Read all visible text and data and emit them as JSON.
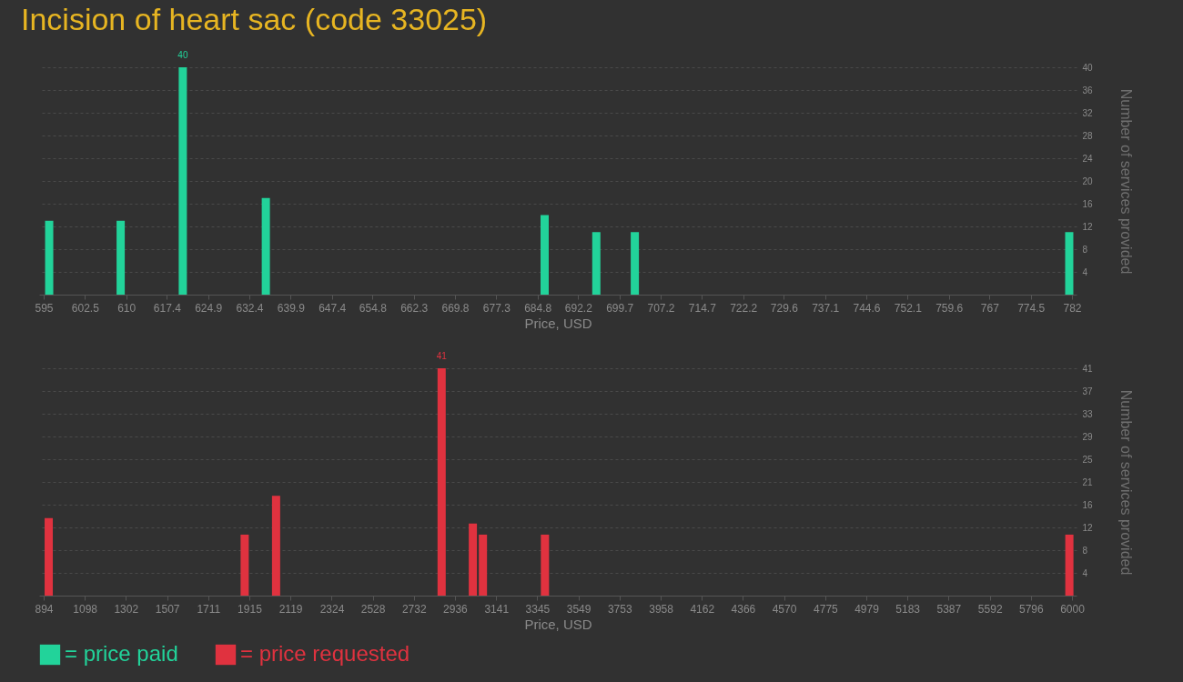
{
  "chart_data": [
    {
      "type": "bar",
      "title": "Incision of heart sac (code 33025)",
      "xlabel": "Price, USD",
      "ylabel": "Number of services provided",
      "series": [
        {
          "name": "= price paid",
          "color": "#22d39a",
          "x": [
            596,
            609,
            620.3,
            635.4,
            686.1,
            695.5,
            702.5,
            781.5
          ],
          "values": [
            13,
            13,
            40,
            17,
            14,
            11,
            11,
            11
          ],
          "value_labels": [
            null,
            null,
            "40",
            null,
            null,
            null,
            null,
            null
          ]
        }
      ],
      "xlim": [
        595,
        782
      ],
      "xticks": [
        595,
        602.5,
        610,
        617.4,
        624.9,
        632.4,
        639.9,
        647.4,
        654.8,
        662.3,
        669.8,
        677.3,
        684.8,
        692.2,
        699.7,
        707.2,
        714.7,
        722.2,
        729.6,
        737.1,
        744.6,
        752.1,
        759.6,
        767,
        774.5,
        782
      ],
      "ylim": [
        0,
        40
      ],
      "yticks": [
        4,
        8,
        12,
        16,
        20,
        24,
        28,
        32,
        36,
        40
      ],
      "grid": "y",
      "legend": "bottom left"
    },
    {
      "type": "bar",
      "xlabel": "Price, USD",
      "ylabel": "Number of services provided",
      "series": [
        {
          "name": "= price requested",
          "color": "#e0323f",
          "x": [
            919,
            1892,
            2048,
            2870,
            3025,
            3075,
            3383,
            5987
          ],
          "values": [
            14,
            11,
            18,
            41,
            13,
            11,
            11,
            11
          ],
          "value_labels": [
            null,
            null,
            null,
            "41",
            null,
            null,
            null,
            null
          ]
        }
      ],
      "xlim": [
        894,
        6000
      ],
      "xticks": [
        894,
        1098,
        1302,
        1507,
        1711,
        1915,
        2119,
        2324,
        2528,
        2732,
        2936,
        3141,
        3345,
        3549,
        3753,
        3958,
        4162,
        4366,
        4570,
        4775,
        4979,
        5183,
        5387,
        5592,
        5796,
        6000
      ],
      "ylim": [
        0,
        41
      ],
      "yticks": [
        {
          "value": 4.1,
          "label": "4"
        },
        {
          "value": 8.2,
          "label": "8"
        },
        {
          "value": 12.3,
          "label": "12"
        },
        {
          "value": 16.4,
          "label": "16"
        },
        {
          "value": 20.5,
          "label": "21"
        },
        {
          "value": 24.6,
          "label": "25"
        },
        {
          "value": 28.7,
          "label": "29"
        },
        {
          "value": 32.8,
          "label": "33"
        },
        {
          "value": 36.9,
          "label": "37"
        },
        {
          "value": 41,
          "label": "41"
        }
      ],
      "grid": "y",
      "legend": "bottom left"
    }
  ]
}
